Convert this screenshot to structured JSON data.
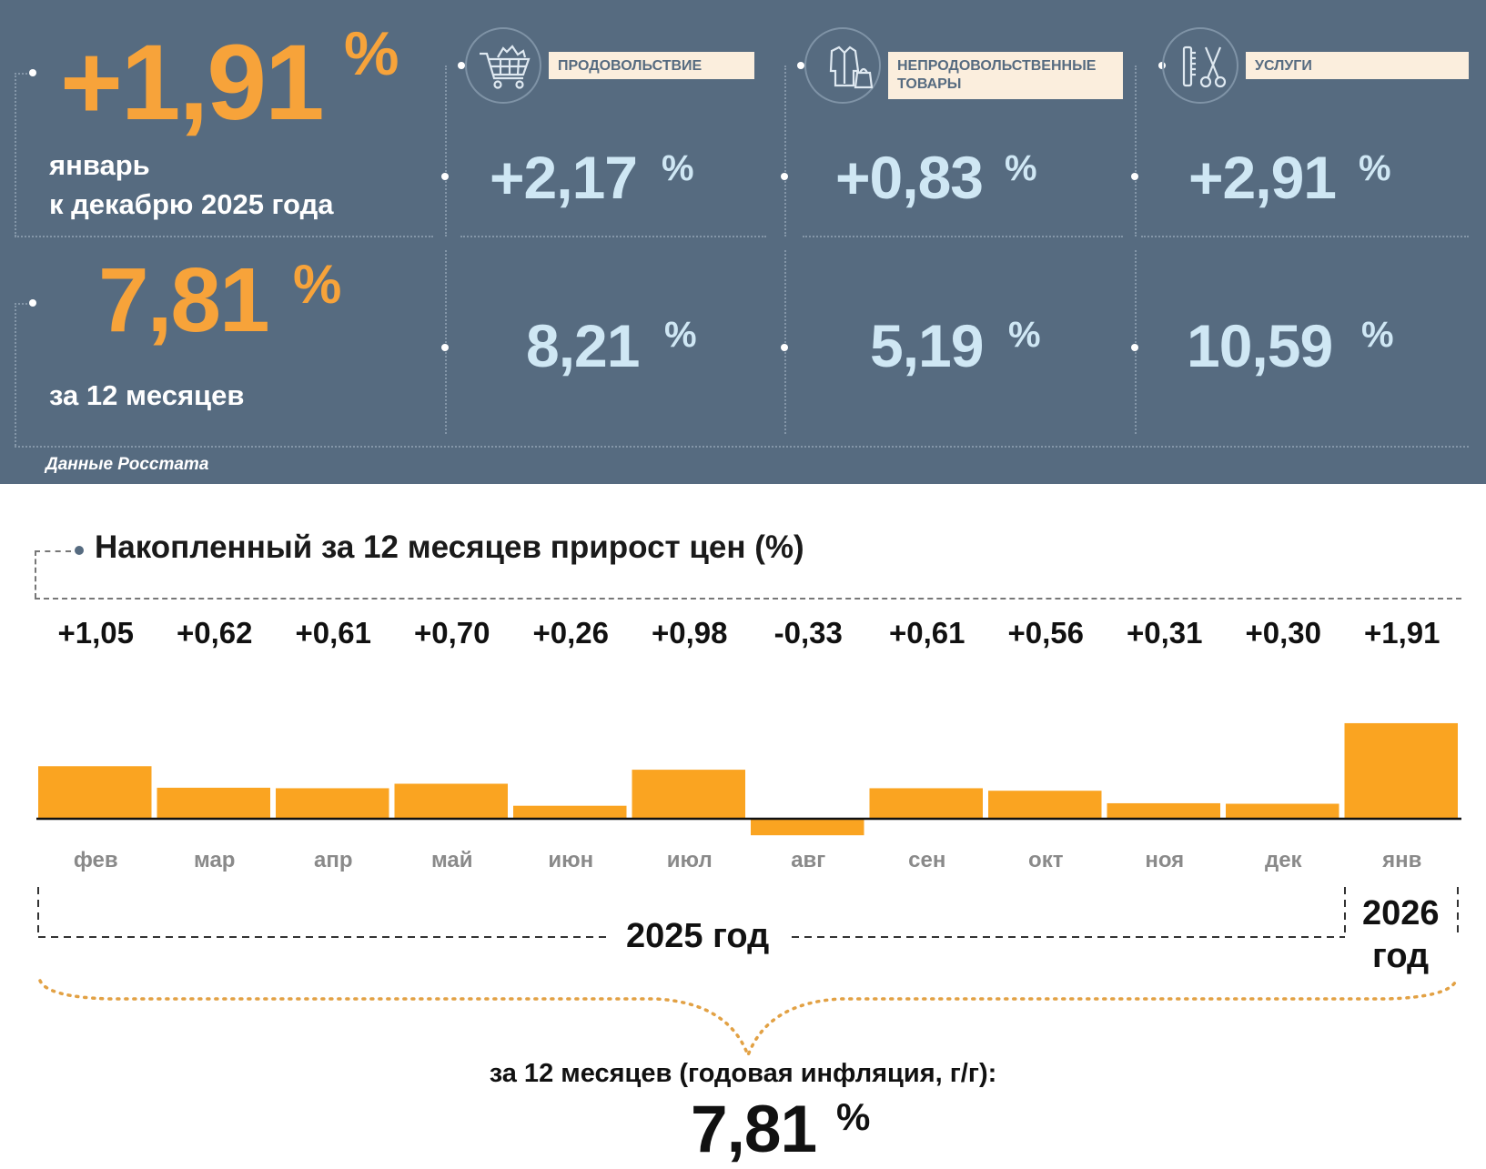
{
  "colors": {
    "panel_bg": "#566b80",
    "accent_orange": "#f7a33a",
    "value_blue": "#cfe7f4",
    "label_bg": "#fbeedd",
    "bar": "#faa421"
  },
  "summary": {
    "monthly_value": "+1,91",
    "pct": "%",
    "monthly_caption_1": "январь",
    "monthly_caption_2": "к декабрю 2025 года",
    "annual_value": "7,81",
    "annual_caption": "за 12 месяцев",
    "source": "Данные Росстата"
  },
  "categories": [
    {
      "icon": "shopping-cart-icon",
      "label_1": "ПРОДОВОЛЬСТВИЕ",
      "label_2": "",
      "monthly": "+2,17",
      "annual": "8,21"
    },
    {
      "icon": "clothing-bag-icon",
      "label_1": "НЕПРОДОВОЛЬСТВЕННЫЕ",
      "label_2": "ТОВАРЫ",
      "monthly": "+0,83",
      "annual": "5,19"
    },
    {
      "icon": "scissors-comb-icon",
      "label_1": "УСЛУГИ",
      "label_2": "",
      "monthly": "+2,91",
      "annual": "10,59"
    }
  ],
  "chart_data": {
    "type": "bar",
    "title": "Накопленный за 12 месяцев прирост цен (%)",
    "categories": [
      "фев",
      "мар",
      "апр",
      "май",
      "июн",
      "июл",
      "авг",
      "сен",
      "окт",
      "ноя",
      "дек",
      "янв"
    ],
    "values": [
      1.05,
      0.62,
      0.61,
      0.7,
      0.26,
      0.98,
      -0.33,
      0.61,
      0.56,
      0.31,
      0.3,
      1.91
    ],
    "value_labels": [
      "+1,05",
      "+0,62",
      "+0,61",
      "+0,70",
      "+0,26",
      "+0,98",
      "-0,33",
      "+0,61",
      "+0,56",
      "+0,31",
      "+0,30",
      "+1,91"
    ],
    "year_labels": [
      "2025 год",
      "2026",
      "год"
    ],
    "annual_caption": "за 12 месяцев (годовая инфляция, г/г):",
    "annual_value": "7,81",
    "annual_pct": "%"
  }
}
